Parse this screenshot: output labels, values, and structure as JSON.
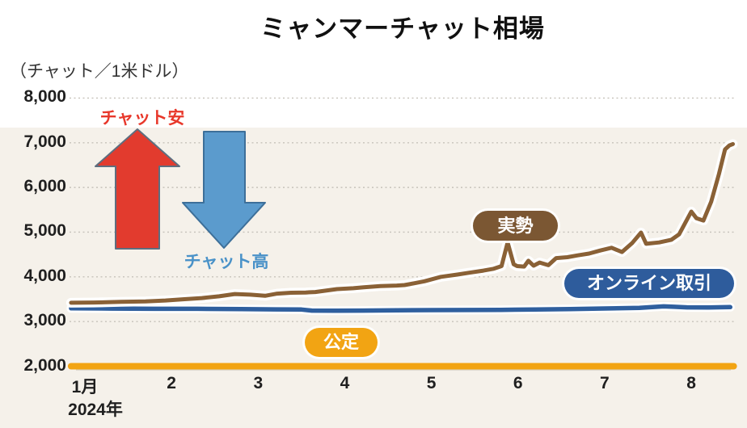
{
  "chart": {
    "title": "ミャンマーチャット相場",
    "unit_label": "（チャット／1米ドル）",
    "year_label": "2024年"
  },
  "annotations": {
    "kyat_weak_label": "チャット安",
    "kyat_strong_label": "チャット高"
  },
  "pills": {
    "actual": "実勢",
    "online": "オンライン取引",
    "official": "公定"
  },
  "colors": {
    "actual_line": "#8a6136",
    "actual_pill": "#7b5733",
    "online_line": "#2f5f9e",
    "online_pill": "#2e5c9c",
    "official_line": "#f2a413",
    "weak_arrow": "#e23b2e",
    "strong_arrow": "#5b9bcd",
    "grid": "#c6c2ba",
    "plot_background": "#f5f1ea"
  },
  "chart_data": {
    "type": "line",
    "title": "ミャンマーチャット相場",
    "ylabel": "チャット／1米ドル",
    "ylim": [
      2000,
      8000
    ],
    "xlim": [
      0.84,
      8.49
    ],
    "grid": "horizontal-dotted",
    "ytick_values": [
      2000,
      3000,
      4000,
      5000,
      6000,
      7000,
      8000
    ],
    "ytick_labels": [
      "2,000",
      "3,000",
      "4,000",
      "5,000",
      "6,000",
      "7,000",
      "8,000"
    ],
    "xtick_values": [
      1,
      2,
      3,
      4,
      5,
      6,
      7,
      8
    ],
    "xtick_labels": [
      "1月",
      "2",
      "3",
      "4",
      "5",
      "6",
      "7",
      "8"
    ],
    "x_year": "2024年",
    "series": [
      {
        "name": "実勢",
        "color": "#8a6136",
        "width": 5,
        "casing": 12,
        "points": [
          [
            0.84,
            3420
          ],
          [
            1.1,
            3425
          ],
          [
            1.42,
            3440
          ],
          [
            1.7,
            3450
          ],
          [
            1.93,
            3470
          ],
          [
            2.15,
            3500
          ],
          [
            2.35,
            3525
          ],
          [
            2.55,
            3565
          ],
          [
            2.73,
            3615
          ],
          [
            2.91,
            3600
          ],
          [
            3.08,
            3575
          ],
          [
            3.22,
            3625
          ],
          [
            3.38,
            3645
          ],
          [
            3.55,
            3650
          ],
          [
            3.66,
            3660
          ],
          [
            3.91,
            3725
          ],
          [
            4.1,
            3745
          ],
          [
            4.22,
            3765
          ],
          [
            4.41,
            3795
          ],
          [
            4.6,
            3805
          ],
          [
            4.69,
            3815
          ],
          [
            4.8,
            3855
          ],
          [
            4.92,
            3900
          ],
          [
            5.11,
            4000
          ],
          [
            5.3,
            4050
          ],
          [
            5.43,
            4090
          ],
          [
            5.6,
            4140
          ],
          [
            5.72,
            4180
          ],
          [
            5.81,
            4240
          ],
          [
            5.88,
            4770
          ],
          [
            5.95,
            4280
          ],
          [
            5.99,
            4240
          ],
          [
            6.07,
            4230
          ],
          [
            6.12,
            4360
          ],
          [
            6.18,
            4250
          ],
          [
            6.25,
            4320
          ],
          [
            6.35,
            4260
          ],
          [
            6.44,
            4420
          ],
          [
            6.57,
            4440
          ],
          [
            6.69,
            4480
          ],
          [
            6.82,
            4520
          ],
          [
            6.95,
            4590
          ],
          [
            7.08,
            4650
          ],
          [
            7.2,
            4555
          ],
          [
            7.32,
            4760
          ],
          [
            7.42,
            4990
          ],
          [
            7.48,
            4740
          ],
          [
            7.63,
            4770
          ],
          [
            7.77,
            4830
          ],
          [
            7.86,
            4950
          ],
          [
            8.0,
            5460
          ],
          [
            8.06,
            5310
          ],
          [
            8.14,
            5260
          ],
          [
            8.23,
            5680
          ],
          [
            8.32,
            6300
          ],
          [
            8.39,
            6850
          ],
          [
            8.44,
            6940
          ],
          [
            8.48,
            6970
          ]
        ]
      },
      {
        "name": "オンライン取引",
        "color": "#2f5f9e",
        "width": 5.5,
        "casing": 11,
        "points": [
          [
            0.84,
            3295
          ],
          [
            1.3,
            3290
          ],
          [
            1.8,
            3285
          ],
          [
            2.3,
            3285
          ],
          [
            2.8,
            3278
          ],
          [
            3.2,
            3272
          ],
          [
            3.5,
            3268
          ],
          [
            3.62,
            3245
          ],
          [
            3.9,
            3242
          ],
          [
            4.2,
            3245
          ],
          [
            4.6,
            3250
          ],
          [
            5.0,
            3255
          ],
          [
            5.4,
            3258
          ],
          [
            5.8,
            3262
          ],
          [
            6.2,
            3268
          ],
          [
            6.6,
            3278
          ],
          [
            7.0,
            3292
          ],
          [
            7.4,
            3305
          ],
          [
            7.68,
            3338
          ],
          [
            7.8,
            3330
          ],
          [
            7.95,
            3318
          ],
          [
            8.2,
            3315
          ],
          [
            8.45,
            3322
          ]
        ]
      },
      {
        "name": "公定",
        "color": "#f2a413",
        "width": 8,
        "casing": 0,
        "points": [
          [
            0.84,
            2000
          ],
          [
            8.49,
            2000
          ]
        ]
      }
    ]
  }
}
